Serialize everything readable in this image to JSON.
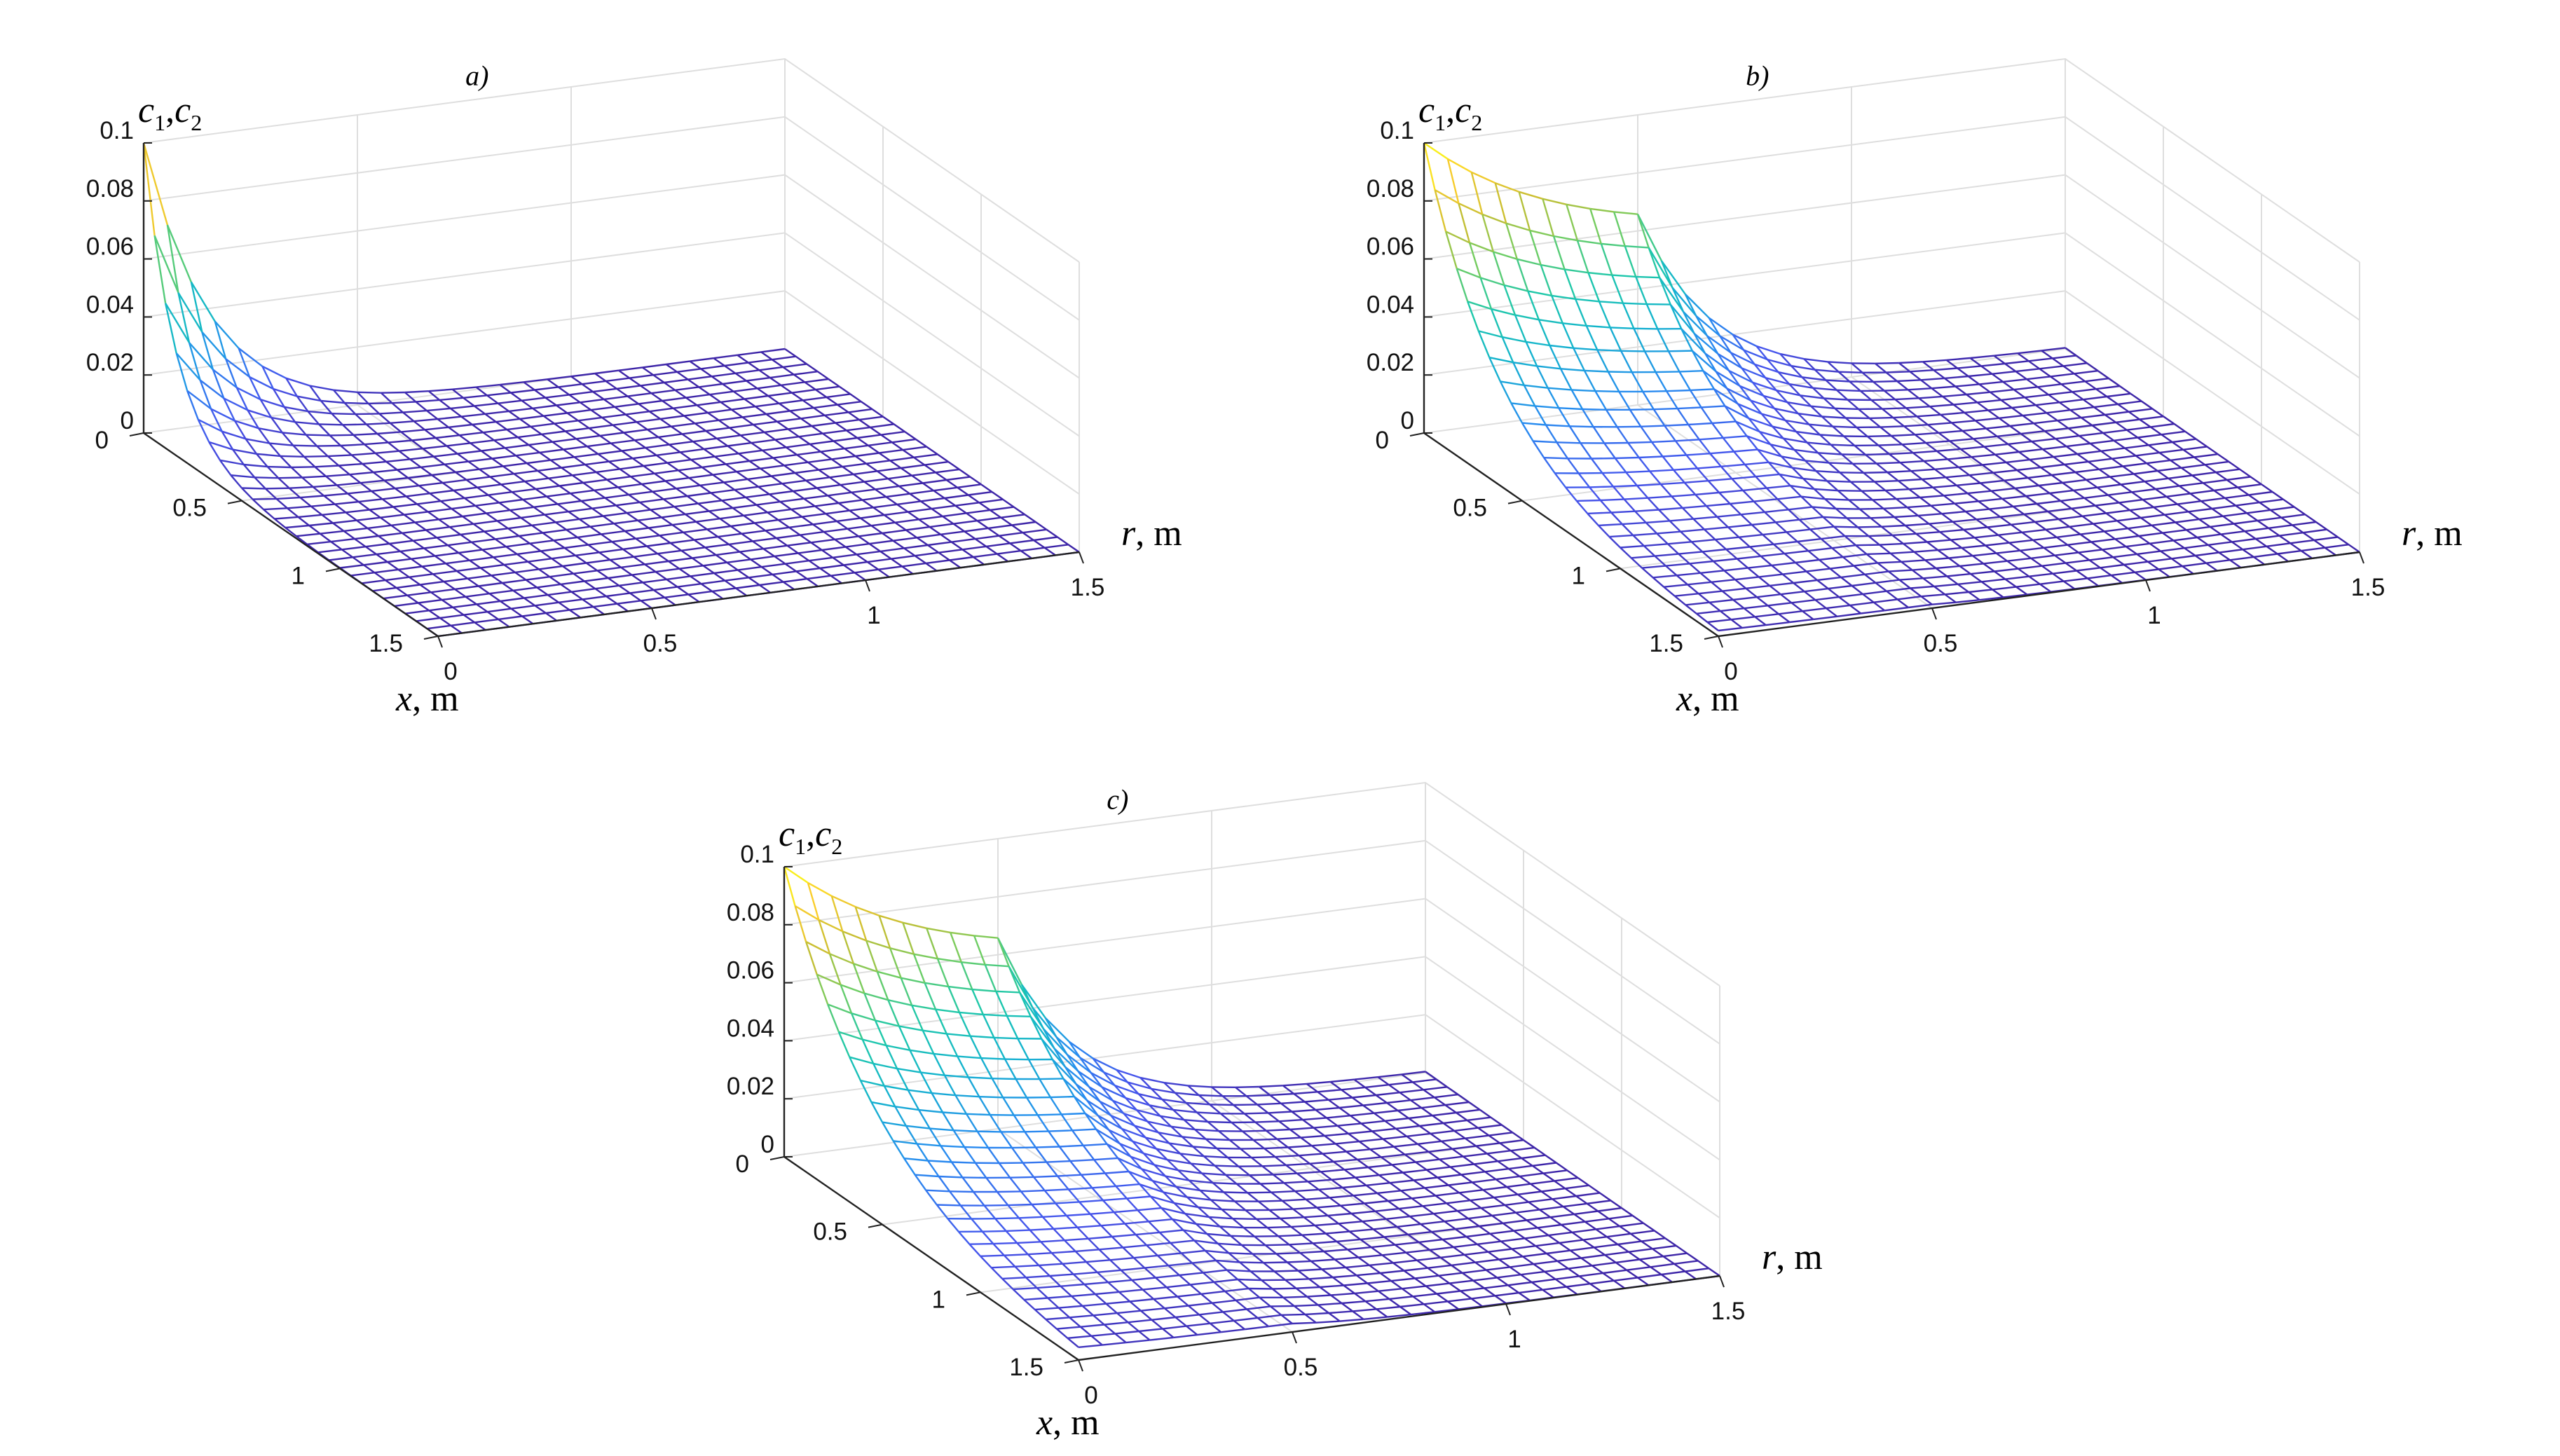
{
  "chart_data": [
    {
      "panel": "a)",
      "type": "surface",
      "zlabel_vars": [
        "c",
        "c"
      ],
      "zlabel_subs": [
        "1",
        "2"
      ],
      "xlabel_var": "x",
      "xlabel_unit": ", m",
      "rlabel_var": "r",
      "rlabel_unit": ", m",
      "x_ticks": [
        "0",
        "0.5",
        "1",
        "1.5"
      ],
      "r_ticks": [
        "0",
        "0.5",
        "1",
        "1.5"
      ],
      "z_ticks": [
        "0",
        "0.02",
        "0.04",
        "0.06",
        "0.08",
        "0.1"
      ],
      "xlim": [
        0,
        1.5
      ],
      "rlim": [
        0,
        1.5
      ],
      "zlim": [
        0,
        0.1
      ],
      "grid": true,
      "mesh_lines": 27,
      "surface_model": {
        "peak": 0.1,
        "x_decay": 0.16,
        "r_decay": 0.16,
        "r_plateau": 0
      }
    },
    {
      "panel": "b)",
      "type": "surface",
      "zlabel_vars": [
        "c",
        "c"
      ],
      "zlabel_subs": [
        "1",
        "2"
      ],
      "xlabel_var": "x",
      "xlabel_unit": ", m",
      "rlabel_var": "r",
      "rlabel_unit": ", m",
      "x_ticks": [
        "0",
        "0.5",
        "1",
        "1.5"
      ],
      "r_ticks": [
        "0",
        "0.5",
        "1",
        "1.5"
      ],
      "z_ticks": [
        "0",
        "0.02",
        "0.04",
        "0.06",
        "0.08",
        "0.1"
      ],
      "xlim": [
        0,
        1.5
      ],
      "rlim": [
        0,
        1.5
      ],
      "zlim": [
        0,
        0.1
      ],
      "grid": true,
      "mesh_lines": 27,
      "surface_model": {
        "peak": 0.1,
        "x_decay": 0.38,
        "r_decay": 0.2,
        "r_plateau": 0.5
      }
    },
    {
      "panel": "c)",
      "type": "surface",
      "zlabel_vars": [
        "c",
        "c"
      ],
      "zlabel_subs": [
        "1",
        "2"
      ],
      "xlabel_var": "x",
      "xlabel_unit": ", m",
      "rlabel_var": "r",
      "rlabel_unit": ", m",
      "x_ticks": [
        "0",
        "0.5",
        "1",
        "1.5"
      ],
      "r_ticks": [
        "0",
        "0.5",
        "1",
        "1.5"
      ],
      "z_ticks": [
        "0",
        "0.02",
        "0.04",
        "0.06",
        "0.08",
        "0.1"
      ],
      "xlim": [
        0,
        1.5
      ],
      "rlim": [
        0,
        1.5
      ],
      "zlim": [
        0,
        0.1
      ],
      "grid": true,
      "mesh_lines": 27,
      "surface_model": {
        "peak": 0.1,
        "x_decay": 0.48,
        "r_decay": 0.2,
        "r_plateau": 0.5
      }
    }
  ],
  "colormap": "parula"
}
